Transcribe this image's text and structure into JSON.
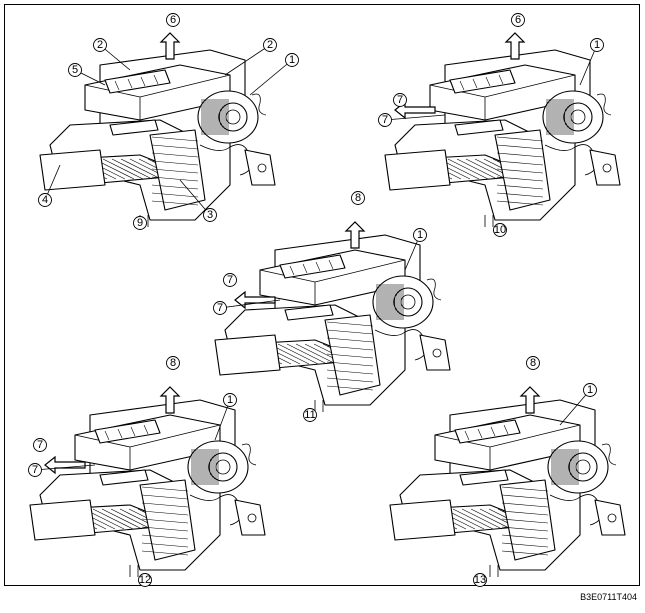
{
  "views": [
    {
      "id": "v1",
      "label": "9",
      "callouts": [
        {
          "text": "6"
        },
        {
          "text": "2"
        },
        {
          "text": "2"
        },
        {
          "text": "5"
        },
        {
          "text": "1"
        },
        {
          "text": "4"
        },
        {
          "text": "3"
        }
      ]
    },
    {
      "id": "v2",
      "label": "10",
      "callouts": [
        {
          "text": "6"
        },
        {
          "text": "1"
        },
        {
          "text": "7"
        },
        {
          "text": "7"
        }
      ]
    },
    {
      "id": "v3",
      "label": "11",
      "callouts": [
        {
          "text": "8"
        },
        {
          "text": "1"
        },
        {
          "text": "7"
        },
        {
          "text": "7"
        }
      ]
    },
    {
      "id": "v4",
      "label": "12",
      "callouts": [
        {
          "text": "8"
        },
        {
          "text": "1"
        },
        {
          "text": "7"
        },
        {
          "text": "7"
        }
      ]
    },
    {
      "id": "v5",
      "label": "13",
      "callouts": [
        {
          "text": "8"
        },
        {
          "text": "1"
        }
      ]
    }
  ],
  "ref_code": "B3E0711T404"
}
